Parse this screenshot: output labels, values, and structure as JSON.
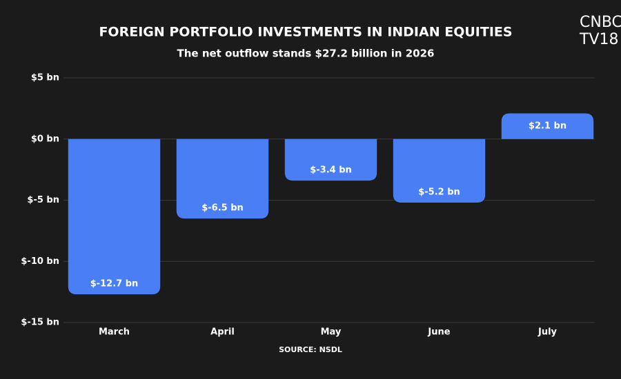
{
  "chart_data": {
    "type": "bar",
    "title": "FOREIGN PORTFOLIO INVESTMENTS IN INDIAN EQUITIES",
    "subtitle": "The net outflow stands $27.2 billion in 2026",
    "source": "SOURCE: NSDL",
    "logo": [
      "CNBC",
      "TV18"
    ],
    "categories": [
      "March",
      "April",
      "May",
      "June",
      "July"
    ],
    "values": [
      -12.7,
      -6.5,
      -3.4,
      -5.2,
      2.1
    ],
    "value_labels": [
      "$-12.7 bn",
      "$-6.5 bn",
      "$-3.4 bn",
      "$-5.2 bn",
      "$2.1 bn"
    ],
    "color": "#4a7ef5",
    "ylim": [
      -15,
      5
    ],
    "yticks": [
      {
        "value": 5,
        "label": "$5 bn"
      },
      {
        "value": 0,
        "label": "$0 bn"
      },
      {
        "value": -5,
        "label": "$-5 bn"
      },
      {
        "value": -10,
        "label": "$-10 bn"
      },
      {
        "value": -15,
        "label": "$-15 bn"
      }
    ],
    "grid": true
  }
}
